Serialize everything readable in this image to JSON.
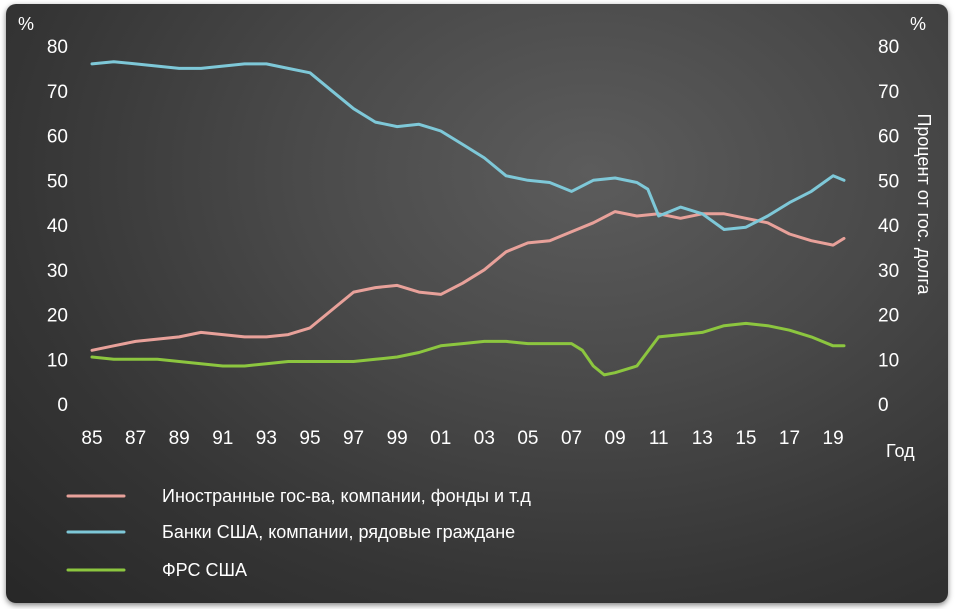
{
  "chart_data": {
    "type": "line",
    "y_unit_left": "%",
    "y_unit_right": "%",
    "ylabel_right": "Процент от гос. долга",
    "xlabel": "Год",
    "ylim": [
      0,
      80
    ],
    "yticks": [
      0,
      10,
      20,
      30,
      40,
      50,
      60,
      70,
      80
    ],
    "xlim": [
      1985,
      2019.5
    ],
    "xticks": [
      1985,
      1987,
      1989,
      1991,
      1993,
      1995,
      1997,
      1999,
      2001,
      2003,
      2005,
      2007,
      2009,
      2011,
      2013,
      2015,
      2017,
      2019
    ],
    "xtick_labels": [
      "85",
      "87",
      "89",
      "91",
      "93",
      "95",
      "97",
      "99",
      "01",
      "03",
      "05",
      "07",
      "09",
      "11",
      "13",
      "15",
      "17",
      "19"
    ],
    "grid": false,
    "legend_position": "bottom-left",
    "series": [
      {
        "name": "Иностранные гос-ва, компании, фонды и т.д",
        "color": "#e8a19a",
        "x": [
          1985,
          1986,
          1987,
          1988,
          1989,
          1990,
          1991,
          1992,
          1993,
          1994,
          1995,
          1996,
          1997,
          1998,
          1999,
          2000,
          2001,
          2002,
          2003,
          2004,
          2005,
          2006,
          2007,
          2008,
          2009,
          2010,
          2011,
          2012,
          2013,
          2014,
          2015,
          2016,
          2017,
          2018,
          2019,
          2019.5
        ],
        "values": [
          12,
          13,
          14,
          14.5,
          15,
          16,
          15.5,
          15,
          15,
          15.5,
          17,
          21,
          25,
          26,
          26.5,
          25,
          24.5,
          27,
          30,
          34,
          36,
          36.5,
          38.5,
          40.5,
          43,
          42,
          42.5,
          41.5,
          42.5,
          42.5,
          41.5,
          40.5,
          38,
          36.5,
          35.5,
          37
        ]
      },
      {
        "name": "Банки США, компании, рядовые граждане",
        "color": "#7ec8d8",
        "x": [
          1985,
          1986,
          1987,
          1988,
          1989,
          1990,
          1991,
          1992,
          1993,
          1994,
          1995,
          1996,
          1997,
          1998,
          1999,
          2000,
          2001,
          2002,
          2003,
          2004,
          2005,
          2006,
          2007,
          2008,
          2009,
          2010,
          2010.5,
          2011,
          2011.5,
          2012,
          2013,
          2014,
          2015,
          2016,
          2017,
          2018,
          2019,
          2019.5
        ],
        "values": [
          76,
          76.5,
          76,
          75.5,
          75,
          75,
          75.5,
          76,
          76,
          75,
          74,
          70,
          66,
          63,
          62,
          62.5,
          61,
          58,
          55,
          51,
          50,
          49.5,
          47.5,
          50,
          50.5,
          49.5,
          48,
          42,
          43,
          44,
          42.5,
          39,
          39.5,
          42,
          45,
          47.5,
          51,
          50
        ]
      },
      {
        "name": "ФРС США",
        "color": "#8cc63f",
        "x": [
          1985,
          1986,
          1987,
          1988,
          1989,
          1990,
          1991,
          1992,
          1993,
          1994,
          1995,
          1996,
          1997,
          1998,
          1999,
          2000,
          2001,
          2002,
          2003,
          2004,
          2005,
          2006,
          2007,
          2007.5,
          2008,
          2008.5,
          2009,
          2010,
          2011,
          2012,
          2013,
          2014,
          2015,
          2016,
          2017,
          2018,
          2019,
          2019.5
        ],
        "values": [
          10.5,
          10,
          10,
          10,
          9.5,
          9,
          8.5,
          8.5,
          9,
          9.5,
          9.5,
          9.5,
          9.5,
          10,
          10.5,
          11.5,
          13,
          13.5,
          14,
          14,
          13.5,
          13.5,
          13.5,
          12,
          8.5,
          6.5,
          7,
          8.5,
          15,
          15.5,
          16,
          17.5,
          18,
          17.5,
          16.5,
          15,
          13,
          13
        ]
      }
    ]
  }
}
